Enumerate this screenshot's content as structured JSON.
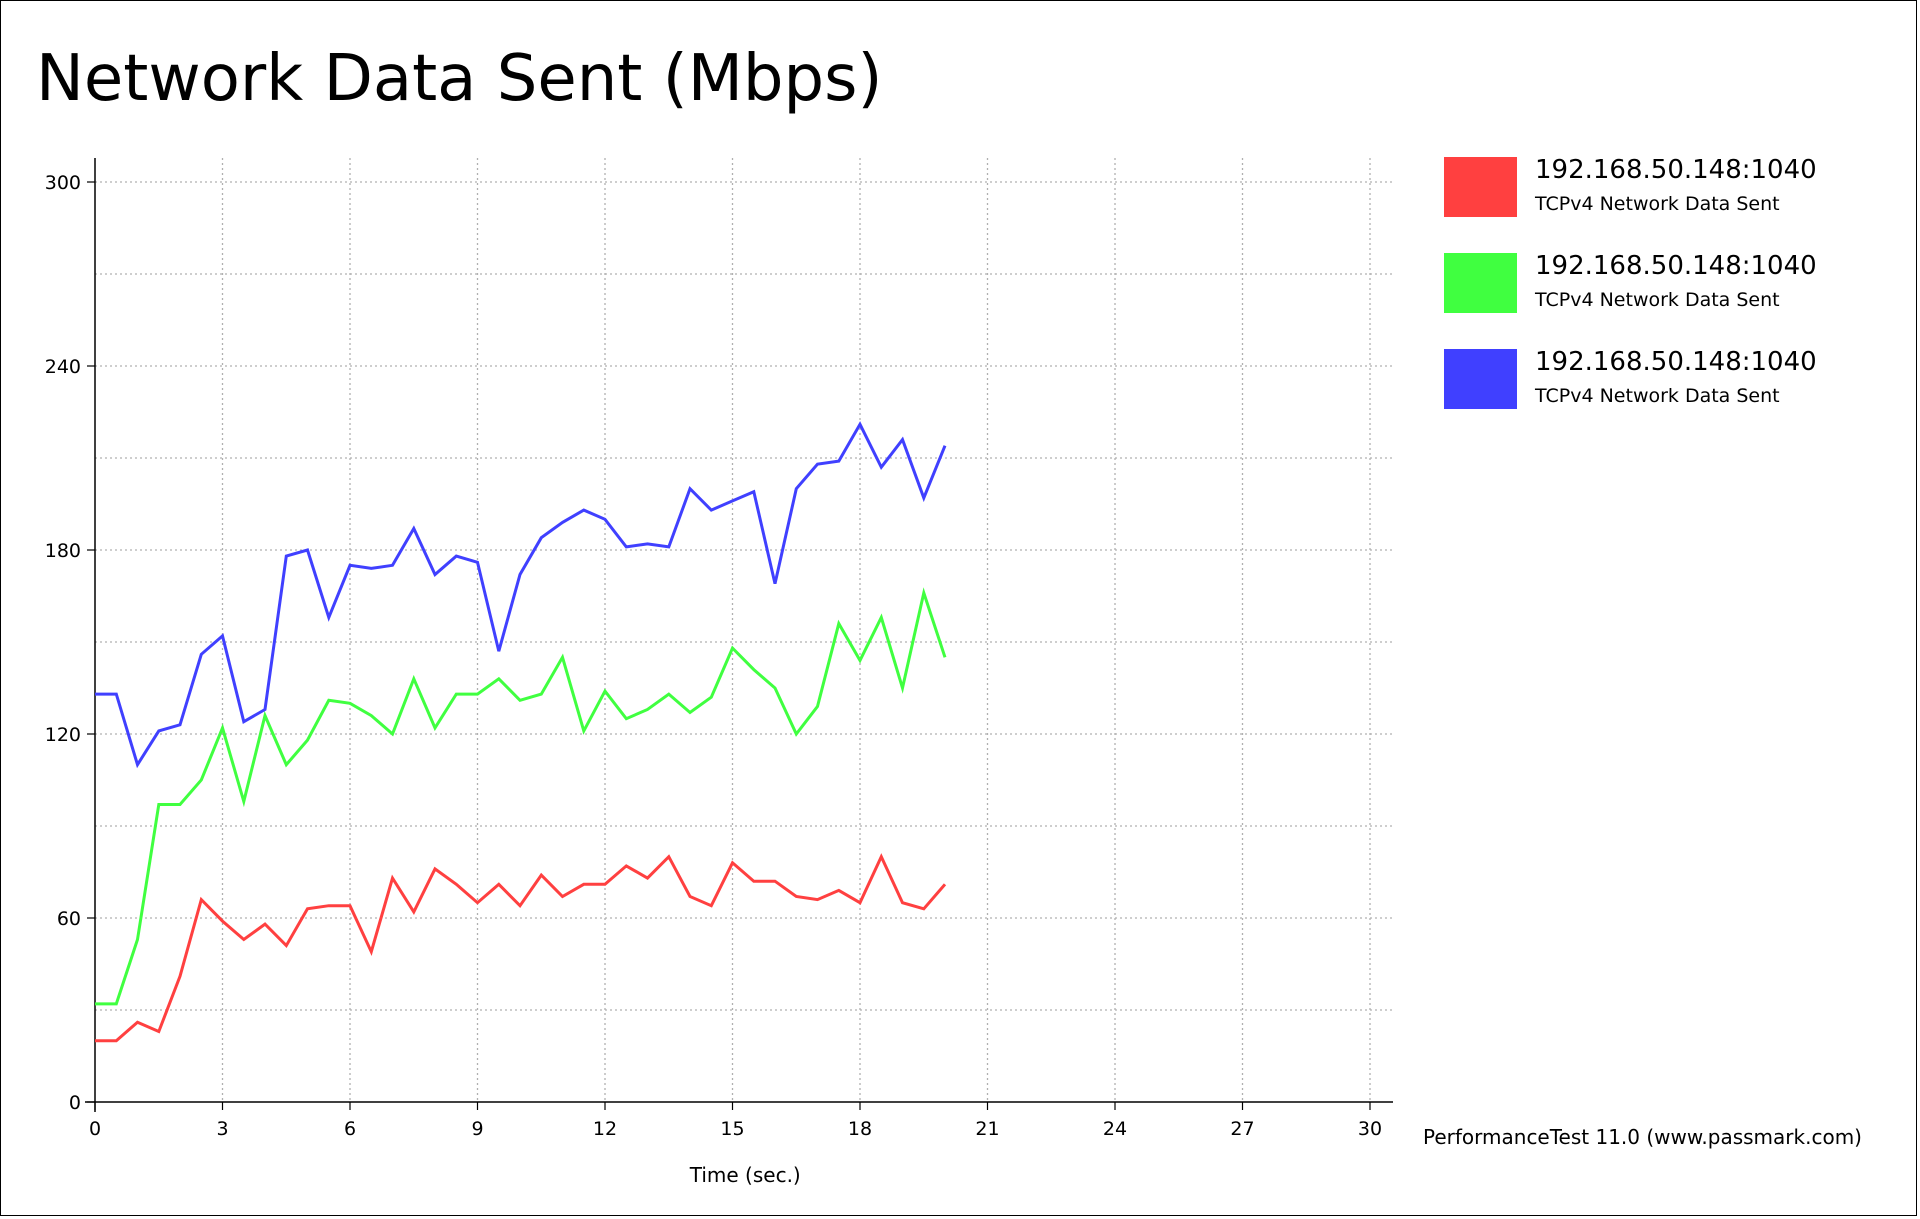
{
  "chart_data": {
    "type": "line",
    "title": "Network Data Sent (Mbps)",
    "xlabel": "Time (sec.)",
    "ylabel": "",
    "xlim": [
      0,
      30
    ],
    "ylim": [
      0,
      300
    ],
    "xticks": [
      0,
      3,
      6,
      9,
      12,
      15,
      18,
      21,
      24,
      27,
      30
    ],
    "yticks": [
      0,
      60,
      120,
      180,
      240,
      300
    ],
    "grid": true,
    "legend_position": "right",
    "x": [
      0,
      0.5,
      1,
      1.5,
      2,
      2.5,
      3,
      3.5,
      4,
      4.5,
      5,
      5.5,
      6,
      6.5,
      7,
      7.5,
      8,
      8.5,
      9,
      9.5,
      10,
      10.5,
      11,
      11.5,
      12,
      12.5,
      13,
      13.5,
      14,
      14.5,
      15,
      15.5,
      16,
      16.5,
      17,
      17.5,
      18,
      18.5,
      19,
      19.5,
      20
    ],
    "series": [
      {
        "name": "192.168.50.148:1040",
        "subtitle": "TCPv4 Network Data Sent",
        "color": "#ff4040",
        "values": [
          20,
          20,
          26,
          23,
          41,
          66,
          59,
          53,
          58,
          51,
          63,
          64,
          64,
          49,
          73,
          62,
          76,
          71,
          65,
          71,
          64,
          74,
          67,
          71,
          71,
          77,
          73,
          80,
          67,
          64,
          78,
          72,
          72,
          67,
          66,
          69,
          65,
          80,
          65,
          63,
          71
        ]
      },
      {
        "name": "192.168.50.148:1040",
        "subtitle": "TCPv4 Network Data Sent",
        "color": "#40ff40",
        "values": [
          32,
          32,
          53,
          97,
          97,
          105,
          122,
          98,
          126,
          110,
          118,
          131,
          130,
          126,
          120,
          138,
          122,
          133,
          133,
          138,
          131,
          133,
          145,
          121,
          134,
          125,
          128,
          133,
          127,
          132,
          148,
          141,
          135,
          120,
          129,
          156,
          144,
          158,
          135,
          166,
          145
        ]
      },
      {
        "name": "192.168.50.148:1040",
        "subtitle": "TCPv4 Network Data Sent",
        "color": "#4040ff",
        "values": [
          133,
          133,
          110,
          121,
          123,
          146,
          152,
          124,
          128,
          178,
          180,
          158,
          175,
          174,
          175,
          187,
          172,
          178,
          176,
          147,
          172,
          184,
          189,
          193,
          190,
          181,
          182,
          181,
          200,
          193,
          196,
          199,
          169,
          200,
          208,
          209,
          221,
          207,
          216,
          197,
          214
        ]
      }
    ],
    "footer": "PerformanceTest 11.0 (www.passmark.com)"
  }
}
